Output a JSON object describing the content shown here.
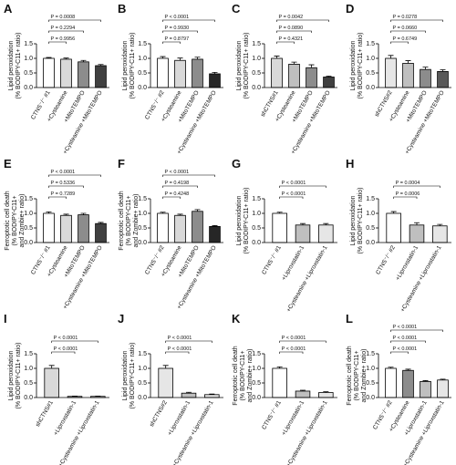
{
  "chart_data": [
    {
      "type": "bar",
      "panel": "A",
      "ylabel": [
        "Lipid peroxidation",
        "(% BODIPY-C11+ ratio)"
      ],
      "categories": [
        "CTNS⁻/⁻ #1",
        "+Cysteamine",
        "+MitoTEMPO",
        "+Cysteamine +MitoTEMPO"
      ],
      "values": [
        1.0,
        0.97,
        0.88,
        0.75
      ],
      "errors": [
        0.03,
        0.04,
        0.05,
        0.04
      ],
      "colors": [
        "#ffffff",
        "#d9d9d9",
        "#8c8c8c",
        "#404040"
      ],
      "annotations": [
        "P = 0.9956",
        "P = 0.2294",
        "P = 0.0008"
      ],
      "ylim": [
        0,
        1.5
      ],
      "yticks": [
        {
          "value": 0,
          "label": "0.0"
        },
        0.5,
        {
          "value": 1,
          "label": "1.0"
        },
        1.5
      ]
    },
    {
      "type": "bar",
      "panel": "B",
      "ylabel": [
        "Lipid peroxidation",
        "(% BODIPY-C11+ ratio)"
      ],
      "categories": [
        "CTNS⁻/⁻ #2",
        "+Cysteamine",
        "+MitoTEMPO",
        "+Cysteamine +MitoTEMPO"
      ],
      "values": [
        1.0,
        0.93,
        0.97,
        0.47
      ],
      "errors": [
        0.06,
        0.08,
        0.07,
        0.05
      ],
      "colors": [
        "#ffffff",
        "#d9d9d9",
        "#8c8c8c",
        "#262626"
      ],
      "annotations": [
        "P = 0.8797",
        "P = 0.9930",
        "P < 0.0001"
      ],
      "ylim": [
        0,
        1.5
      ],
      "yticks": [
        {
          "value": 0,
          "label": "0.0"
        },
        0.5,
        {
          "value": 1,
          "label": "1.0"
        },
        1.5
      ]
    },
    {
      "type": "bar",
      "panel": "C",
      "ylabel": [
        "Lipid peroxidation",
        "(% BODIPY-C11+ ratio)"
      ],
      "categories": [
        "shCTNS#1",
        "+Cysteamine",
        "+MitoTEMPO",
        "+Cysteamine +MitoTEMPO"
      ],
      "values": [
        1.0,
        0.8,
        0.68,
        0.36
      ],
      "errors": [
        0.08,
        0.07,
        0.1,
        0.03
      ],
      "colors": [
        "#d9d9d9",
        "#bfbfbf",
        "#8c8c8c",
        "#404040"
      ],
      "annotations": [
        "P = 0.4321",
        "P = 0.0890",
        "P = 0.0042"
      ],
      "ylim": [
        0,
        1.5
      ],
      "yticks": [
        {
          "value": 0,
          "label": "0.0"
        },
        0.5,
        {
          "value": 1,
          "label": "1.0"
        },
        1.5
      ]
    },
    {
      "type": "bar",
      "panel": "D",
      "ylabel": [
        "Lipid peroxidation",
        "(% BODIPY-C11+ ratio)"
      ],
      "categories": [
        "shCTNS#2",
        "+Cysteamine",
        "+MitoTEMPO",
        "+Cysteamine +MitoTEMPO"
      ],
      "values": [
        1.0,
        0.83,
        0.62,
        0.55
      ],
      "errors": [
        0.1,
        0.09,
        0.08,
        0.06
      ],
      "colors": [
        "#e6e6e6",
        "#bfbfbf",
        "#8c8c8c",
        "#595959"
      ],
      "annotations": [
        "P = 0.6749",
        "P = 0.0660",
        "P = 0.0278"
      ],
      "ylim": [
        0,
        1.5
      ],
      "yticks": [
        {
          "value": 0,
          "label": "0.0"
        },
        0.5,
        {
          "value": 1,
          "label": "1.0"
        },
        1.5
      ]
    },
    {
      "type": "bar",
      "panel": "E",
      "ylabel": [
        "Ferroptotic cell death",
        "(% BODIPY-C11+",
        "and Zombie+ ratio)"
      ],
      "categories": [
        "CTNS⁻/⁻ #1",
        "+Cysteamine",
        "+MitoTEMPO",
        "+Cysteamine +MitoTEMPO"
      ],
      "values": [
        1.0,
        0.93,
        0.95,
        0.65
      ],
      "errors": [
        0.05,
        0.04,
        0.05,
        0.04
      ],
      "colors": [
        "#ffffff",
        "#d9d9d9",
        "#8c8c8c",
        "#404040"
      ],
      "annotations": [
        "P = 0.7289",
        "P = 0.5336",
        "P < 0.0001"
      ],
      "ylim": [
        0,
        1.5
      ],
      "yticks": [
        {
          "value": 0,
          "label": "0.0"
        },
        0.5,
        {
          "value": 1,
          "label": "1.0"
        },
        1.5
      ]
    },
    {
      "type": "bar",
      "panel": "F",
      "ylabel": [
        "Ferroptotic cell death",
        "(% BODIPY-C11+",
        "and Zombie+ ratio)"
      ],
      "categories": [
        "CTNS⁻/⁻ #2",
        "+Cysteamine",
        "+MitoTEMPO",
        "+Cysteamine +MitoTEMPO"
      ],
      "values": [
        1.0,
        0.93,
        1.07,
        0.55
      ],
      "errors": [
        0.04,
        0.04,
        0.06,
        0.03
      ],
      "colors": [
        "#ffffff",
        "#d9d9d9",
        "#8c8c8c",
        "#262626"
      ],
      "annotations": [
        "P = 0.4248",
        "P = 0.4198",
        "P < 0.0001"
      ],
      "ylim": [
        0,
        1.5
      ],
      "yticks": [
        {
          "value": 0,
          "label": "0.0"
        },
        0.5,
        {
          "value": 1,
          "label": "1.0"
        },
        1.5
      ]
    },
    {
      "type": "bar",
      "panel": "G",
      "ylabel": [
        "Lipid peroxidation",
        "(% BODIPY-C11+ ratio)"
      ],
      "categories": [
        "CTNS⁻/⁻ #1",
        "+Liproxstatin-1",
        "+Cysteamine +Liproxstatin-1"
      ],
      "values": [
        1.0,
        0.6,
        0.6
      ],
      "errors": [
        0.04,
        0.05,
        0.05
      ],
      "colors": [
        "#ffffff",
        "#bfbfbf",
        "#e6e6e6"
      ],
      "annotations": [
        "P < 0.0001",
        "P < 0.0001"
      ],
      "ylim": [
        0,
        1.5
      ],
      "yticks": [
        {
          "value": 0,
          "label": "0.0"
        },
        0.5,
        {
          "value": 1,
          "label": "1.0"
        },
        1.5
      ]
    },
    {
      "type": "bar",
      "panel": "H",
      "ylabel": [
        "Lipid peroxidation",
        "(% BODIPY-C11+ ratio)"
      ],
      "categories": [
        "CTNS⁻/⁻ #2",
        "+Liproxstatin-1",
        "+Cysteamine +Liproxstatin-1"
      ],
      "values": [
        1.0,
        0.6,
        0.57
      ],
      "errors": [
        0.06,
        0.08,
        0.05
      ],
      "colors": [
        "#ffffff",
        "#bfbfbf",
        "#e6e6e6"
      ],
      "annotations": [
        "P = 0.0006",
        "P = 0.0004"
      ],
      "ylim": [
        0,
        1.5
      ],
      "yticks": [
        {
          "value": 0,
          "label": "0.0"
        },
        0.5,
        {
          "value": 1,
          "label": "1.0"
        },
        1.5
      ]
    },
    {
      "type": "bar",
      "panel": "I",
      "ylabel": [
        "Lipid peroxidation",
        "(% BODIPY-C11+ ratio)"
      ],
      "categories": [
        "shCTNS#1",
        "+Liproxstatin-1",
        "+Cysteamine +Liproxstatin-1"
      ],
      "values": [
        1.0,
        0.04,
        0.04
      ],
      "errors": [
        0.1,
        0.01,
        0.01
      ],
      "colors": [
        "#d9d9d9",
        "#bfbfbf",
        "#e6e6e6"
      ],
      "annotations": [
        "P < 0.0001",
        "P < 0.0001"
      ],
      "ylim": [
        0,
        1.5
      ],
      "yticks": [
        {
          "value": 0,
          "label": "0.0"
        },
        0.5,
        {
          "value": 1,
          "label": "1.0"
        },
        1.5
      ]
    },
    {
      "type": "bar",
      "panel": "J",
      "ylabel": [
        "Lipid peroxidation",
        "(% BODIPY-C11+ ratio)"
      ],
      "categories": [
        "shCTNS#2",
        "+Liproxstatin-1",
        "+Cysteamine +Liproxstatin-1"
      ],
      "values": [
        1.0,
        0.15,
        0.1
      ],
      "errors": [
        0.1,
        0.03,
        0.02
      ],
      "colors": [
        "#e6e6e6",
        "#bfbfbf",
        "#e6e6e6"
      ],
      "annotations": [
        "P < 0.0001",
        "P < 0.0001"
      ],
      "ylim": [
        0,
        1.5
      ],
      "yticks": [
        {
          "value": 0,
          "label": "0.0"
        },
        0.5,
        {
          "value": 1,
          "label": "1.0"
        },
        1.5
      ]
    },
    {
      "type": "bar",
      "panel": "K",
      "ylabel": [
        "Ferroptotic cell death",
        "(% BODIPY-C11+",
        "and Zombie+ ratio)"
      ],
      "categories": [
        "CTNS⁻/⁻ #1",
        "+Liproxstatin-1",
        "+Cysteamine +Liproxstatin-1"
      ],
      "values": [
        1.0,
        0.22,
        0.17
      ],
      "errors": [
        0.05,
        0.03,
        0.03
      ],
      "colors": [
        "#ffffff",
        "#bfbfbf",
        "#e6e6e6"
      ],
      "annotations": [
        "P < 0.0001",
        "P < 0.0001"
      ],
      "ylim": [
        0,
        1.5
      ],
      "yticks": [
        {
          "value": 0,
          "label": "0.0"
        },
        0.5,
        {
          "value": 1,
          "label": "1.0"
        },
        1.5
      ]
    },
    {
      "type": "bar",
      "panel": "L",
      "ylabel": [
        "Ferroptotic cell death",
        "(% BODIPY-C11+",
        "and Zombie+ ratio)"
      ],
      "categories": [
        "CTNS⁻/⁻ #2",
        "+Cysteamine",
        "+Liproxstatin-1",
        "+Cysteamine +Liproxstatin-1"
      ],
      "values": [
        1.0,
        0.93,
        0.55,
        0.6
      ],
      "errors": [
        0.04,
        0.04,
        0.03,
        0.03
      ],
      "colors": [
        "#ffffff",
        "#8c8c8c",
        "#bfbfbf",
        "#e6e6e6"
      ],
      "annotations": [
        "P < 0.0001",
        "P < 0.0001",
        "P < 0.0001"
      ],
      "ylim": [
        0,
        1.5
      ],
      "yticks": [
        {
          "value": 0,
          "label": "0.0"
        },
        0.5,
        {
          "value": 1,
          "label": "1.0"
        },
        1.5
      ]
    }
  ]
}
